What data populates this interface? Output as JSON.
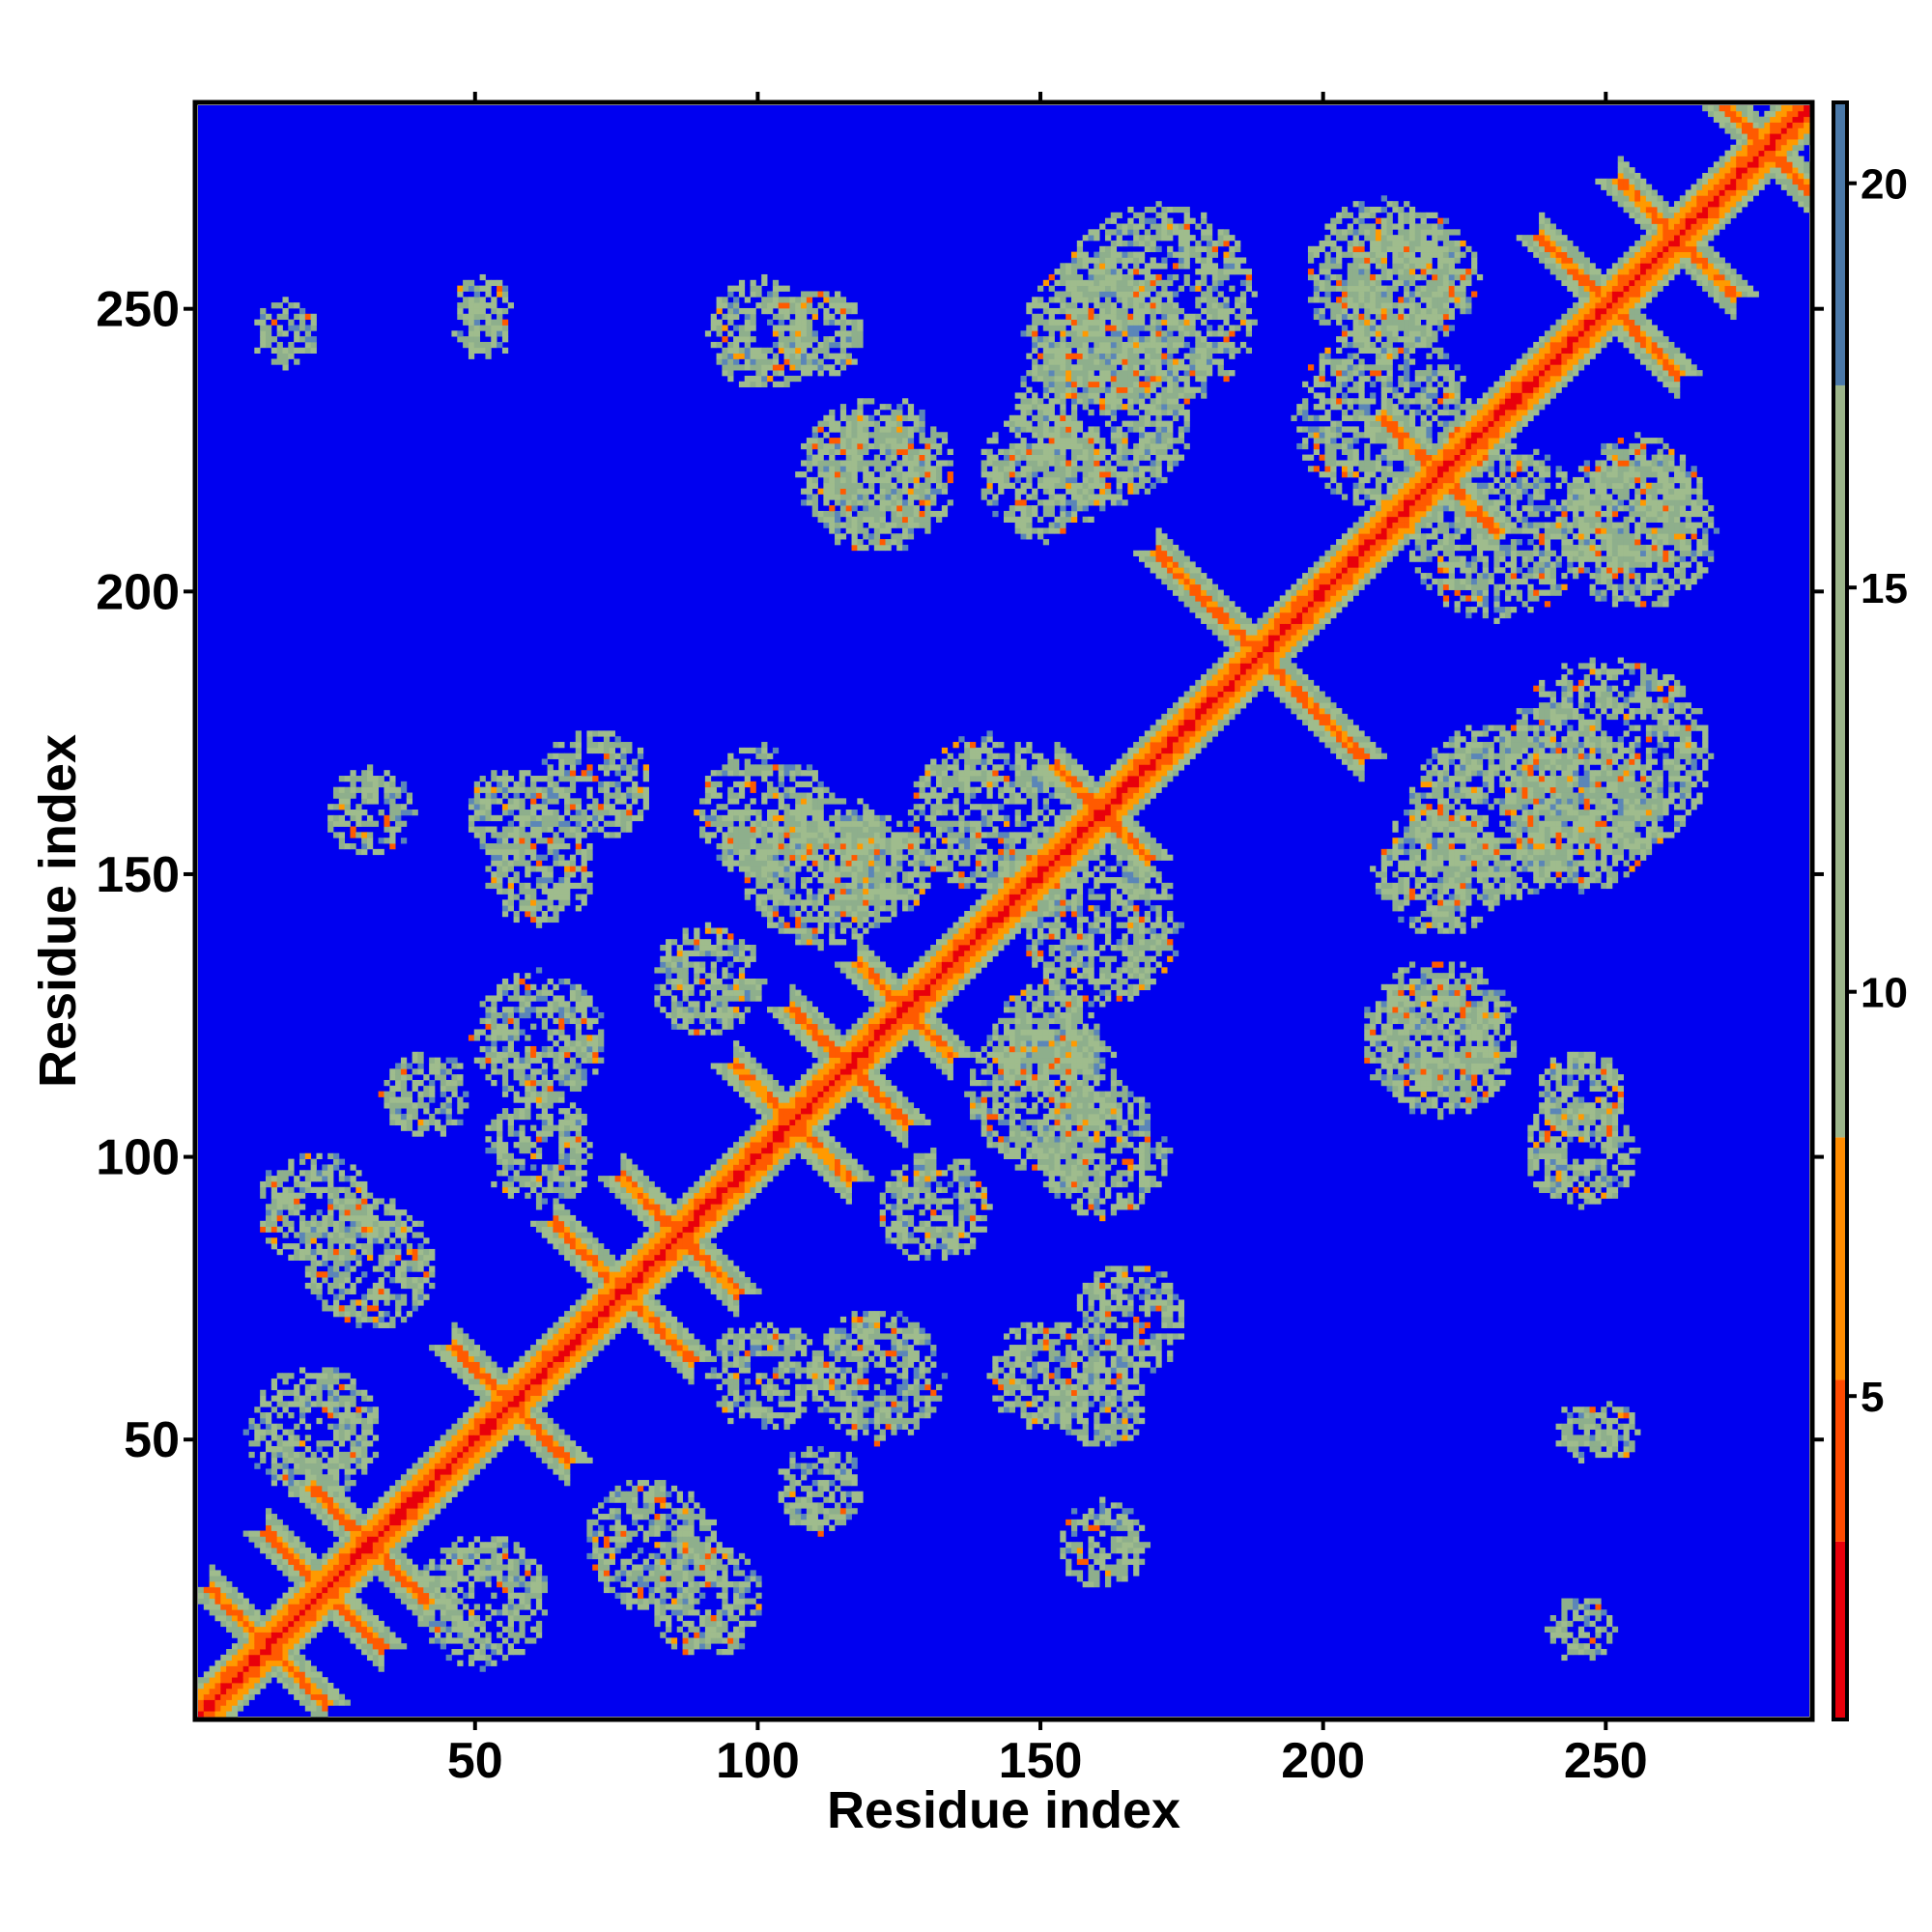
{
  "chart_data": {
    "type": "heatmap",
    "title": "",
    "xlabel": "Residue index",
    "ylabel": "Residue index",
    "xlim": [
      1,
      286
    ],
    "ylim": [
      1,
      286
    ],
    "xticks": [
      "50",
      "100",
      "150",
      "200",
      "250"
    ],
    "yticks": [
      "50",
      "100",
      "150",
      "200",
      "250"
    ],
    "colorbar": {
      "range": [
        1,
        21
      ],
      "ticks": [
        "5",
        "10",
        "15",
        "20"
      ],
      "colors": {
        "low": "#e8000b",
        "mid": "#ff8c00",
        "high_light": "#9cb58a",
        "high_dark": "#4a78a8",
        "background": "#0000f0"
      }
    },
    "description_features": {
      "diagonal_value": 1,
      "background_value": 21,
      "helix_crossings": [
        {
          "x": 12,
          "y": 12,
          "half_len": 10
        },
        {
          "x": 22,
          "y": 22,
          "half_len": 10
        },
        {
          "x": 30,
          "y": 30,
          "half_len": 10
        },
        {
          "x": 55,
          "y": 55,
          "half_len": 10
        },
        {
          "x": 75,
          "y": 75,
          "half_len": 12
        },
        {
          "x": 85,
          "y": 85,
          "half_len": 10
        },
        {
          "x": 105,
          "y": 105,
          "half_len": 10
        },
        {
          "x": 115,
          "y": 115,
          "half_len": 10
        },
        {
          "x": 125,
          "y": 125,
          "half_len": 8
        },
        {
          "x": 160,
          "y": 160,
          "half_len": 8
        },
        {
          "x": 188,
          "y": 188,
          "half_len": 18
        },
        {
          "x": 220,
          "y": 220,
          "half_len": 10
        },
        {
          "x": 250,
          "y": 250,
          "half_len": 12
        },
        {
          "x": 262,
          "y": 262,
          "half_len": 10
        },
        {
          "x": 278,
          "y": 278,
          "half_len": 8
        }
      ],
      "contact_blobs": [
        {
          "x": 20,
          "y": 90,
          "r": 10
        },
        {
          "x": 40,
          "y": 110,
          "r": 8
        },
        {
          "x": 60,
          "y": 120,
          "r": 12
        },
        {
          "x": 90,
          "y": 130,
          "r": 10
        },
        {
          "x": 100,
          "y": 160,
          "r": 12
        },
        {
          "x": 120,
          "y": 150,
          "r": 10
        },
        {
          "x": 140,
          "y": 160,
          "r": 14
        },
        {
          "x": 120,
          "y": 220,
          "r": 14
        },
        {
          "x": 150,
          "y": 220,
          "r": 12
        },
        {
          "x": 170,
          "y": 250,
          "r": 18
        },
        {
          "x": 230,
          "y": 160,
          "r": 16
        },
        {
          "x": 245,
          "y": 160,
          "r": 14
        },
        {
          "x": 220,
          "y": 120,
          "r": 10
        },
        {
          "x": 245,
          "y": 110,
          "r": 8
        },
        {
          "x": 150,
          "y": 60,
          "r": 10
        },
        {
          "x": 150,
          "y": 110,
          "r": 14
        },
        {
          "x": 210,
          "y": 255,
          "r": 14
        },
        {
          "x": 230,
          "y": 210,
          "r": 16
        },
        {
          "x": 255,
          "y": 215,
          "r": 12
        },
        {
          "x": 50,
          "y": 20,
          "r": 12
        },
        {
          "x": 80,
          "y": 30,
          "r": 12
        },
        {
          "x": 100,
          "y": 60,
          "r": 10
        },
        {
          "x": 30,
          "y": 160,
          "r": 8
        },
        {
          "x": 55,
          "y": 160,
          "r": 8
        },
        {
          "x": 100,
          "y": 245,
          "r": 10
        },
        {
          "x": 50,
          "y": 250,
          "r": 5
        },
        {
          "x": 165,
          "y": 70,
          "r": 10
        },
        {
          "x": 245,
          "y": 15,
          "r": 6
        },
        {
          "x": 245,
          "y": 50,
          "r": 5
        }
      ]
    }
  }
}
